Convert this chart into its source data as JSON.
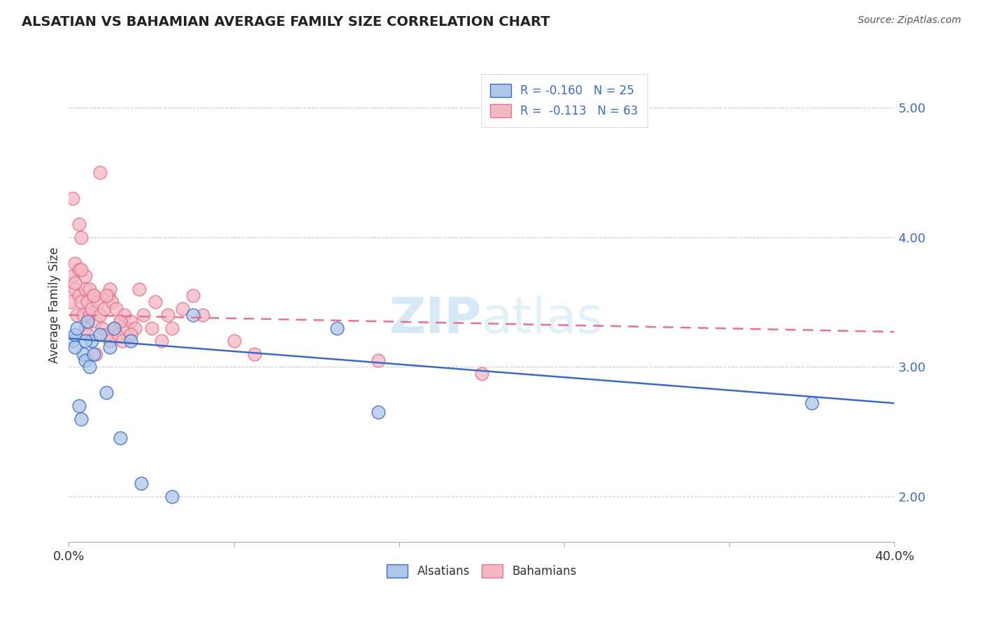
{
  "title": "ALSATIAN VS BAHAMIAN AVERAGE FAMILY SIZE CORRELATION CHART",
  "source": "Source: ZipAtlas.com",
  "ylabel": "Average Family Size",
  "yticks": [
    2.0,
    3.0,
    4.0,
    5.0
  ],
  "xticks": [
    0.0,
    0.08,
    0.16,
    0.24,
    0.32,
    0.4
  ],
  "xlim": [
    0.0,
    0.4
  ],
  "ylim": [
    1.65,
    5.3
  ],
  "alsatian_color": "#aec6e8",
  "bahamian_color": "#f4b8c1",
  "trend_alsatian_color": "#3b6bc7",
  "trend_bahamian_color": "#e87090",
  "als_trend_x": [
    0.0,
    0.4
  ],
  "als_trend_y": [
    3.22,
    2.72
  ],
  "bah_trend_x": [
    0.0,
    0.4
  ],
  "bah_trend_y": [
    3.4,
    3.27
  ],
  "alsatian_x": [
    0.002,
    0.003,
    0.004,
    0.005,
    0.006,
    0.007,
    0.008,
    0.009,
    0.01,
    0.011,
    0.012,
    0.015,
    0.018,
    0.022,
    0.025,
    0.03,
    0.05,
    0.06,
    0.13,
    0.15,
    0.36,
    0.003,
    0.008,
    0.02,
    0.035
  ],
  "alsatian_y": [
    3.2,
    3.25,
    3.3,
    2.7,
    2.6,
    3.1,
    3.05,
    3.35,
    3.0,
    3.2,
    3.1,
    3.25,
    2.8,
    3.3,
    2.45,
    3.2,
    2.0,
    3.4,
    3.3,
    2.65,
    2.72,
    3.15,
    3.2,
    3.15,
    2.1
  ],
  "bahamian_x": [
    0.001,
    0.002,
    0.002,
    0.003,
    0.003,
    0.004,
    0.005,
    0.005,
    0.006,
    0.006,
    0.007,
    0.008,
    0.008,
    0.009,
    0.01,
    0.01,
    0.011,
    0.012,
    0.013,
    0.014,
    0.015,
    0.016,
    0.017,
    0.018,
    0.019,
    0.02,
    0.021,
    0.022,
    0.023,
    0.024,
    0.025,
    0.026,
    0.027,
    0.028,
    0.03,
    0.032,
    0.034,
    0.036,
    0.04,
    0.042,
    0.045,
    0.048,
    0.05,
    0.055,
    0.065,
    0.08,
    0.09,
    0.02,
    0.025,
    0.03,
    0.005,
    0.008,
    0.012,
    0.015,
    0.018,
    0.003,
    0.006,
    0.009,
    0.013,
    0.2,
    0.15,
    0.06
  ],
  "bahamian_y": [
    3.5,
    3.7,
    4.3,
    3.6,
    3.8,
    3.4,
    3.55,
    3.75,
    3.5,
    4.0,
    3.4,
    3.6,
    3.3,
    3.5,
    3.4,
    3.6,
    3.45,
    3.55,
    3.35,
    3.5,
    3.4,
    3.3,
    3.45,
    3.25,
    3.55,
    3.2,
    3.5,
    3.3,
    3.45,
    3.25,
    3.35,
    3.2,
    3.4,
    3.3,
    3.35,
    3.3,
    3.6,
    3.4,
    3.3,
    3.5,
    3.2,
    3.4,
    3.3,
    3.45,
    3.4,
    3.2,
    3.1,
    3.6,
    3.35,
    3.25,
    4.1,
    3.7,
    3.55,
    4.5,
    3.55,
    3.65,
    3.75,
    3.25,
    3.1,
    2.95,
    3.05,
    3.55
  ]
}
